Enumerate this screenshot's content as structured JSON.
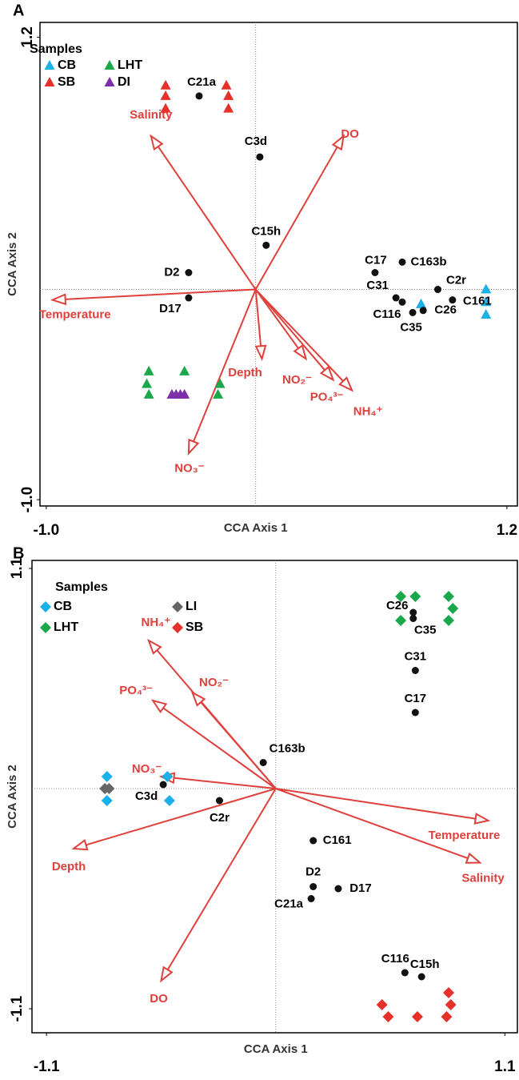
{
  "chart_data": [
    {
      "type": "biplot",
      "panel": "A",
      "xlabel": "CCA Axis 1",
      "ylabel": "CCA Axis 2",
      "xlim": [
        -1.03,
        1.25
      ],
      "ylim": [
        -1.03,
        1.27
      ],
      "xticks": [
        {
          "value": -1,
          "label": "-1.0"
        },
        1.2
      ],
      "yticks": [
        {
          "value": -1,
          "label": "-1.0"
        },
        1.2
      ],
      "legend_title": "Samples",
      "series": [
        {
          "name": "CB",
          "color": "#1ab0e8",
          "marker": "triangle",
          "x": [
            0.79,
            1.1,
            1.1,
            1.1
          ],
          "values": [
            -0.07,
            0.0,
            -0.06,
            -0.12
          ]
        },
        {
          "name": "SB",
          "color": "#e8302a",
          "marker": "triangle",
          "x": [
            -0.43,
            -0.43,
            -0.43,
            -0.14,
            -0.13,
            -0.13
          ],
          "values": [
            0.97,
            0.92,
            0.86,
            0.97,
            0.92,
            0.86
          ]
        },
        {
          "name": "LHT",
          "color": "#1aa84a",
          "marker": "triangle",
          "x": [
            -0.51,
            -0.52,
            -0.51,
            -0.34,
            -0.17,
            -0.18
          ],
          "values": [
            -0.39,
            -0.45,
            -0.5,
            -0.39,
            -0.45,
            -0.5
          ]
        },
        {
          "name": "DI",
          "color": "#7b2fa8",
          "marker": "triangle",
          "x": [
            -0.4,
            -0.38,
            -0.36,
            -0.34
          ],
          "values": [
            -0.5,
            -0.5,
            -0.5,
            -0.5
          ]
        }
      ],
      "sites": {
        "labels": [
          "C21a",
          "C3d",
          "C15h",
          "D2",
          "D17",
          "C17",
          "C163b",
          "C31",
          "C2r",
          "C116",
          "C26",
          "C35",
          "C161"
        ],
        "x": [
          -0.27,
          0.02,
          0.05,
          -0.32,
          -0.32,
          0.57,
          0.7,
          0.67,
          0.87,
          0.7,
          0.8,
          0.75,
          0.94
        ],
        "y": [
          0.92,
          0.63,
          0.21,
          0.08,
          -0.04,
          0.08,
          0.13,
          -0.04,
          0.0,
          -0.06,
          -0.1,
          -0.11,
          -0.05
        ]
      },
      "vectors": {
        "color": "#e0403c",
        "labels": [
          "Salinity",
          "DO",
          "Temperature",
          "Depth",
          "NO₂⁻",
          "PO₄³⁻",
          "NH₄⁺",
          "NO₃⁻"
        ],
        "x": [
          -0.5,
          0.42,
          -0.97,
          0.03,
          0.24,
          0.37,
          0.46,
          -0.32
        ],
        "y": [
          0.73,
          0.73,
          -0.05,
          -0.33,
          -0.33,
          -0.43,
          -0.48,
          -0.78
        ]
      }
    },
    {
      "type": "biplot",
      "panel": "B",
      "xlabel": "CCA Axis 1",
      "ylabel": "CCA Axis 2",
      "xlim": [
        -1.17,
        1.16
      ],
      "ylim": [
        -1.22,
        1.14
      ],
      "xticks": [
        -1.1,
        1.1
      ],
      "yticks": [
        -1.1,
        1.1
      ],
      "legend_title": "Samples",
      "series": [
        {
          "name": "CB",
          "color": "#1ab0e8",
          "marker": "diamond",
          "x": [
            -0.81,
            -0.81,
            -0.52,
            -0.51
          ],
          "values": [
            0.06,
            -0.06,
            0.06,
            -0.06
          ]
        },
        {
          "name": "LHT",
          "color": "#1aa84a",
          "marker": "diamond",
          "x": [
            0.6,
            0.6,
            0.67,
            0.83,
            0.85,
            0.83
          ],
          "values": [
            0.96,
            0.84,
            0.96,
            0.96,
            0.9,
            0.84
          ]
        },
        {
          "name": "LI",
          "color": "#666666",
          "marker": "diamond",
          "x": [
            -0.82,
            -0.8
          ],
          "values": [
            0.0,
            0.0
          ]
        },
        {
          "name": "SB",
          "color": "#e8302a",
          "marker": "diamond",
          "x": [
            0.51,
            0.54,
            0.68,
            0.83,
            0.84,
            0.82
          ],
          "values": [
            -1.08,
            -1.14,
            -1.14,
            -1.02,
            -1.08,
            -1.14
          ]
        }
      ],
      "sites": {
        "labels": [
          "C26",
          "C35",
          "C31",
          "C17",
          "C163b",
          "C3d",
          "C2r",
          "C161",
          "D2",
          "D17",
          "C21a",
          "C116",
          "C15h"
        ],
        "x": [
          0.66,
          0.66,
          0.67,
          0.67,
          -0.06,
          -0.54,
          -0.27,
          0.18,
          0.18,
          0.3,
          0.17,
          0.62,
          0.7
        ],
        "y": [
          0.88,
          0.85,
          0.59,
          0.38,
          0.13,
          0.02,
          -0.06,
          -0.26,
          -0.49,
          -0.5,
          -0.55,
          -0.92,
          -0.94
        ]
      },
      "vectors": {
        "color": "#e0403c",
        "labels": [
          "NH₄⁺",
          "PO₄³⁻",
          "NO₂⁻",
          "NO₃⁻",
          "Depth",
          "DO",
          "Temperature",
          "Salinity"
        ],
        "x": [
          -0.61,
          -0.59,
          -0.4,
          -0.55,
          -0.97,
          -0.55,
          1.02,
          0.98
        ],
        "y": [
          0.74,
          0.44,
          0.48,
          0.06,
          -0.3,
          -0.96,
          -0.16,
          -0.37
        ]
      }
    }
  ]
}
